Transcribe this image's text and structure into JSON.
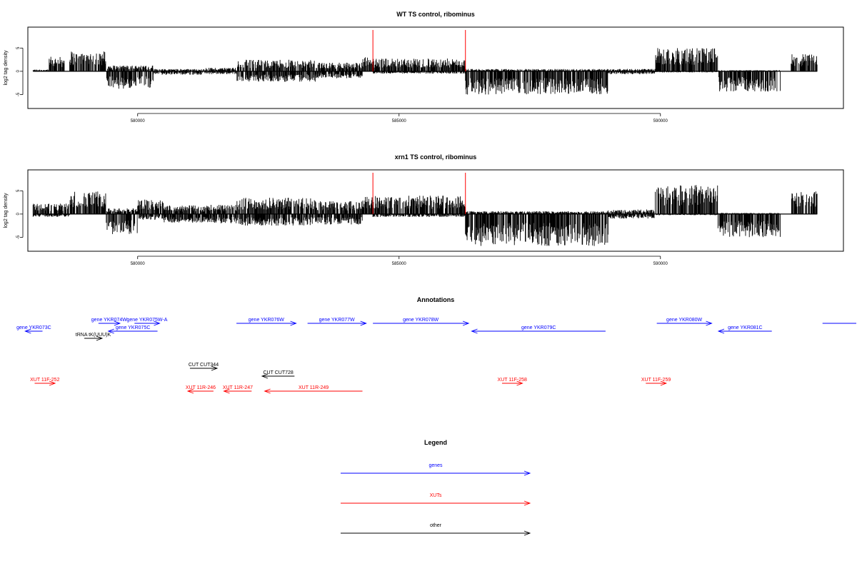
{
  "colors": {
    "gene": "#0000ff",
    "xut": "#ff0000",
    "other": "#000000",
    "marker": "#ff0000",
    "bars": "#000000"
  },
  "chart_data": [
    {
      "type": "bar",
      "title": "WT TS control, ribominus",
      "ylabel": "log2 tag density",
      "xlim": [
        577900,
        593500
      ],
      "ylim": [
        -8,
        9.5
      ],
      "yticks": [
        -5,
        0,
        5
      ],
      "ytick_labels": [
        "-5",
        "0",
        "5"
      ],
      "xticks": [
        580000,
        585000,
        590000
      ],
      "xtick_labels": [
        "580000",
        "585000",
        "590000"
      ],
      "markers": [
        584500,
        586270
      ],
      "regions": [
        [
          578000,
          578300,
          0.3,
          0
        ],
        [
          578300,
          578600,
          2.5,
          0
        ],
        [
          578700,
          579400,
          3.5,
          0
        ],
        [
          579400,
          580300,
          1.0,
          -3.0
        ],
        [
          580300,
          581300,
          0.4,
          -0.6
        ],
        [
          581300,
          581900,
          0.6,
          -0.5
        ],
        [
          581900,
          583400,
          2.0,
          -1.8
        ],
        [
          583400,
          584300,
          1.5,
          -1.2
        ],
        [
          584300,
          584500,
          2.5,
          0
        ],
        [
          584500,
          586270,
          2.2,
          -0.4
        ],
        [
          586270,
          589000,
          0.4,
          -4.0
        ],
        [
          589000,
          589900,
          0.4,
          -0.5
        ],
        [
          589900,
          591100,
          4.0,
          -0.2
        ],
        [
          591100,
          592300,
          0.2,
          -3.5
        ],
        [
          592300,
          592500,
          0,
          0
        ],
        [
          592500,
          593000,
          3.0,
          0
        ]
      ]
    },
    {
      "type": "bar",
      "title": "xrn1 TS control, ribominus",
      "ylabel": "log2 tag density",
      "xlim": [
        577900,
        593500
      ],
      "ylim": [
        -8,
        9.5
      ],
      "yticks": [
        -5,
        0,
        5
      ],
      "ytick_labels": [
        "-5",
        "0",
        "5"
      ],
      "xticks": [
        580000,
        585000,
        590000
      ],
      "xtick_labels": [
        "580000",
        "585000",
        "590000"
      ],
      "markers": [
        584500,
        586270
      ],
      "regions": [
        [
          578000,
          578700,
          1.8,
          -0.5
        ],
        [
          578700,
          579400,
          4.0,
          0
        ],
        [
          579400,
          580000,
          1.0,
          -3.5
        ],
        [
          580000,
          580500,
          2.5,
          -1.0
        ],
        [
          580500,
          581300,
          1.5,
          -1.5
        ],
        [
          581300,
          581900,
          1.6,
          -1.6
        ],
        [
          581900,
          583400,
          2.8,
          -2.0
        ],
        [
          583400,
          584300,
          2.2,
          -1.8
        ],
        [
          584300,
          584500,
          3.0,
          0
        ],
        [
          584500,
          586270,
          3.2,
          -0.5
        ],
        [
          586270,
          589000,
          0.5,
          -5.5
        ],
        [
          589000,
          589900,
          0.8,
          -0.8
        ],
        [
          589900,
          591100,
          5.0,
          -0.2
        ],
        [
          591100,
          592300,
          0.2,
          -4.0
        ],
        [
          592300,
          592500,
          0,
          0
        ],
        [
          592500,
          593000,
          4.0,
          0
        ]
      ]
    }
  ],
  "annotations": {
    "title": "Annotations",
    "features": [
      {
        "label": "gene YKR073C",
        "kind": "gene",
        "from": 578180,
        "to": 577850,
        "row": 1
      },
      {
        "label": "gene YKR074W",
        "kind": "gene",
        "from": 579250,
        "to": 579660,
        "row": 0
      },
      {
        "label": "gene YKR075W-A",
        "kind": "gene",
        "from": 579940,
        "to": 580420,
        "row": 0
      },
      {
        "label": "gene YKR075C",
        "kind": "gene",
        "from": 580380,
        "to": 579440,
        "row": 1
      },
      {
        "label": "tRNA tK(UUU)K",
        "kind": "other",
        "from": 578980,
        "to": 579320,
        "row": 2
      },
      {
        "label": "gene YKR076W",
        "kind": "gene",
        "from": 581890,
        "to": 583030,
        "row": 0
      },
      {
        "label": "gene YKR077W",
        "kind": "gene",
        "from": 583250,
        "to": 584370,
        "row": 0
      },
      {
        "label": "gene YKR078W",
        "kind": "gene",
        "from": 584500,
        "to": 586330,
        "row": 0
      },
      {
        "label": "gene YKR079C",
        "kind": "gene",
        "from": 588950,
        "to": 586390,
        "row": 1
      },
      {
        "label": "gene YKR080W",
        "kind": "gene",
        "from": 589930,
        "to": 590980,
        "row": 0
      },
      {
        "label": "gene YKR081C",
        "kind": "gene",
        "from": 592130,
        "to": 591110,
        "row": 1
      },
      {
        "label": "",
        "kind": "gene",
        "from": 593100,
        "to": 594300,
        "row": 0,
        "noHead": true
      },
      {
        "label": "CUT CUT344",
        "kind": "other",
        "from": 581000,
        "to": 581520,
        "row": 3
      },
      {
        "label": "CUT CUT728",
        "kind": "other",
        "from": 583000,
        "to": 582380,
        "row": 4
      },
      {
        "label": "XUT 11F-252",
        "kind": "xut",
        "from": 578030,
        "to": 578420,
        "row": 5
      },
      {
        "label": "XUT 11R-246",
        "kind": "xut",
        "from": 581450,
        "to": 580960,
        "row": 6
      },
      {
        "label": "XUT 11R-247",
        "kind": "xut",
        "from": 582180,
        "to": 581650,
        "row": 6
      },
      {
        "label": "XUT 11R-249",
        "kind": "xut",
        "from": 584300,
        "to": 582430,
        "row": 6
      },
      {
        "label": "XUT 11F-258",
        "kind": "xut",
        "from": 586970,
        "to": 587360,
        "row": 5
      },
      {
        "label": "XUT 11F-259",
        "kind": "xut",
        "from": 589720,
        "to": 590110,
        "row": 5
      }
    ]
  },
  "legend": {
    "title": "Legend",
    "items": [
      {
        "label": "genes",
        "kind": "gene"
      },
      {
        "label": "XUTs",
        "kind": "xut"
      },
      {
        "label": "other",
        "kind": "other"
      }
    ]
  }
}
